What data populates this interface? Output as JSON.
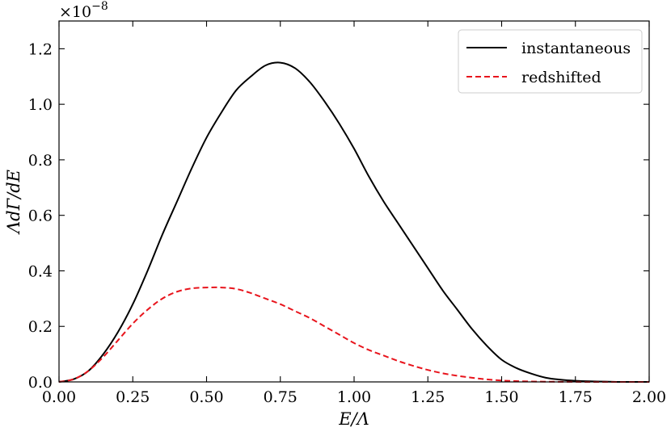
{
  "chart_data": {
    "type": "line",
    "xlabel": "E/Λ",
    "ylabel": "ΛdΓ/dE",
    "xlim": [
      0,
      2
    ],
    "ylim": [
      0,
      1.3
    ],
    "y_scale_multiplier": "×10",
    "y_scale_exponent": "−8",
    "x_ticks": [
      "0.00",
      "0.25",
      "0.50",
      "0.75",
      "1.00",
      "1.25",
      "1.50",
      "1.75",
      "2.00"
    ],
    "x_tick_values": [
      0,
      0.25,
      0.5,
      0.75,
      1.0,
      1.25,
      1.5,
      1.75,
      2.0
    ],
    "y_ticks": [
      "0.0",
      "0.2",
      "0.4",
      "0.6",
      "0.8",
      "1.0",
      "1.2"
    ],
    "y_tick_values": [
      0,
      0.2,
      0.4,
      0.6,
      0.8,
      1.0,
      1.2
    ],
    "grid": false,
    "legend_position": "top-right",
    "series": [
      {
        "name": "instantaneous",
        "color": "#000000",
        "dash": "solid",
        "x": [
          0.0,
          0.05,
          0.1,
          0.15,
          0.2,
          0.25,
          0.3,
          0.35,
          0.4,
          0.45,
          0.5,
          0.55,
          0.6,
          0.65,
          0.7,
          0.75,
          0.8,
          0.85,
          0.9,
          0.95,
          1.0,
          1.05,
          1.1,
          1.15,
          1.2,
          1.25,
          1.3,
          1.35,
          1.4,
          1.45,
          1.5,
          1.55,
          1.6,
          1.65,
          1.7,
          1.75,
          1.8,
          1.85,
          1.9,
          2.0
        ],
        "y": [
          0.0,
          0.01,
          0.04,
          0.1,
          0.18,
          0.28,
          0.4,
          0.53,
          0.65,
          0.77,
          0.88,
          0.97,
          1.05,
          1.1,
          1.14,
          1.15,
          1.13,
          1.08,
          1.01,
          0.93,
          0.84,
          0.74,
          0.65,
          0.57,
          0.49,
          0.41,
          0.33,
          0.26,
          0.19,
          0.13,
          0.08,
          0.05,
          0.03,
          0.015,
          0.008,
          0.004,
          0.002,
          0.001,
          0.0,
          0.0
        ]
      },
      {
        "name": "redshifted",
        "color": "#e8141c",
        "dash": "dashed",
        "x": [
          0.0,
          0.05,
          0.1,
          0.15,
          0.2,
          0.25,
          0.3,
          0.35,
          0.4,
          0.45,
          0.5,
          0.55,
          0.6,
          0.65,
          0.7,
          0.75,
          0.8,
          0.85,
          0.9,
          0.95,
          1.0,
          1.05,
          1.1,
          1.15,
          1.2,
          1.25,
          1.3,
          1.35,
          1.4,
          1.45,
          1.5,
          1.55,
          1.6,
          1.65,
          1.7,
          1.75,
          1.8,
          1.85,
          1.9,
          2.0
        ],
        "y": [
          0.0,
          0.01,
          0.04,
          0.09,
          0.15,
          0.21,
          0.26,
          0.3,
          0.325,
          0.337,
          0.34,
          0.34,
          0.335,
          0.32,
          0.3,
          0.28,
          0.255,
          0.23,
          0.2,
          0.17,
          0.14,
          0.115,
          0.095,
          0.075,
          0.058,
          0.043,
          0.031,
          0.022,
          0.015,
          0.009,
          0.005,
          0.003,
          0.0015,
          0.0008,
          0.0004,
          0.0002,
          0.0001,
          0.0,
          0.0,
          0.0
        ]
      }
    ]
  }
}
